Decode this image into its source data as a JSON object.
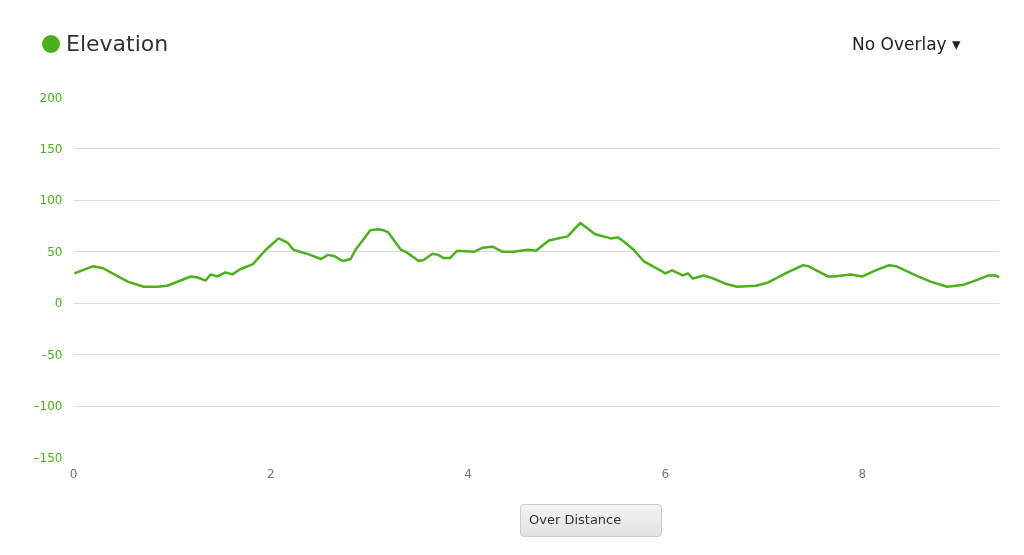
{
  "chart_data": {
    "type": "line",
    "title": "Elevation",
    "x": [
      0.01,
      0.2,
      0.3,
      0.55,
      0.71,
      0.85,
      0.95,
      1.19,
      1.26,
      1.34,
      1.39,
      1.46,
      1.54,
      1.61,
      1.69,
      1.82,
      1.95,
      2.08,
      2.17,
      2.23,
      2.4,
      2.51,
      2.58,
      2.64,
      2.73,
      2.81,
      2.86,
      3.01,
      3.09,
      3.14,
      3.19,
      3.32,
      3.37,
      3.5,
      3.55,
      3.64,
      3.7,
      3.75,
      3.82,
      3.89,
      4.06,
      4.15,
      4.25,
      4.35,
      4.46,
      4.61,
      4.69,
      4.82,
      5.01,
      5.14,
      5.29,
      5.45,
      5.52,
      5.58,
      5.68,
      5.78,
      5.95,
      6.0,
      6.07,
      6.18,
      6.23,
      6.28,
      6.39,
      6.49,
      6.61,
      6.73,
      6.92,
      7.04,
      7.24,
      7.4,
      7.45,
      7.65,
      7.71,
      7.88,
      8.0,
      8.11,
      8.27,
      8.34,
      8.52,
      8.69,
      8.86,
      9.03,
      9.17,
      9.28,
      9.35,
      9.39
    ],
    "series": [
      {
        "color": "#4caf1c",
        "values": [
          29,
          36,
          34,
          21,
          16,
          16,
          17,
          26,
          25,
          22,
          28,
          26,
          30,
          28,
          33,
          38,
          52,
          63,
          59,
          52,
          47,
          43,
          47,
          46,
          41,
          43,
          52,
          71,
          72,
          71,
          69,
          52,
          50,
          41,
          42,
          48,
          47,
          44,
          44,
          51,
          50,
          54,
          55,
          50,
          50,
          52,
          51,
          61,
          65,
          78,
          67,
          63,
          64,
          60,
          52,
          41,
          32,
          29,
          32,
          27,
          29,
          24,
          27,
          24,
          19,
          16,
          17,
          20,
          30,
          37,
          36,
          26,
          26,
          28,
          26,
          31,
          37,
          36,
          28,
          21,
          16,
          18,
          23,
          27,
          27,
          25
        ]
      }
    ],
    "xlim": [
      0,
      9.39
    ],
    "xticks": [
      0,
      2,
      4,
      6,
      8
    ],
    "ylim": [
      -150,
      200
    ],
    "yticks": [
      {
        "value": -150,
        "label": "–150"
      },
      {
        "value": -100,
        "label": "–100"
      },
      {
        "value": -50,
        "label": "–50"
      },
      0,
      50,
      100,
      150,
      200
    ],
    "grid": "y",
    "annotations": [
      "No Overlay ▾",
      "Over Distance"
    ]
  }
}
